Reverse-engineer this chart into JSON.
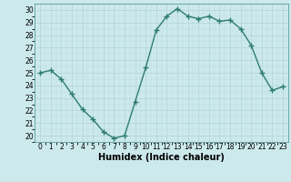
{
  "x": [
    0,
    1,
    2,
    3,
    4,
    5,
    6,
    7,
    8,
    9,
    10,
    11,
    12,
    13,
    14,
    15,
    16,
    17,
    18,
    19,
    20,
    21,
    22,
    23
  ],
  "y": [
    25,
    25.2,
    24.5,
    23.3,
    22.1,
    21.3,
    20.3,
    19.8,
    20.0,
    22.7,
    25.4,
    28.4,
    29.5,
    30.1,
    29.5,
    29.3,
    29.5,
    29.1,
    29.2,
    28.5,
    27.2,
    25.0,
    23.6,
    23.9
  ],
  "line_color": "#2e7d6e",
  "marker": "+",
  "marker_size": 4,
  "bg_color": "#cce9ec",
  "grid_major_color": "#aacfd4",
  "grid_minor_color": "#bddde0",
  "xlabel": "Humidex (Indice chaleur)",
  "xlim": [
    -0.5,
    23.5
  ],
  "ylim": [
    19.5,
    30.5
  ],
  "yticks": [
    20,
    21,
    22,
    23,
    24,
    25,
    26,
    27,
    28,
    29,
    30
  ],
  "xticks": [
    0,
    1,
    2,
    3,
    4,
    5,
    6,
    7,
    8,
    9,
    10,
    11,
    12,
    13,
    14,
    15,
    16,
    17,
    18,
    19,
    20,
    21,
    22,
    23
  ],
  "tick_labelsize": 5.5,
  "xlabel_fontsize": 7,
  "line_width": 1.0,
  "marker_color": "#2e7d6e"
}
